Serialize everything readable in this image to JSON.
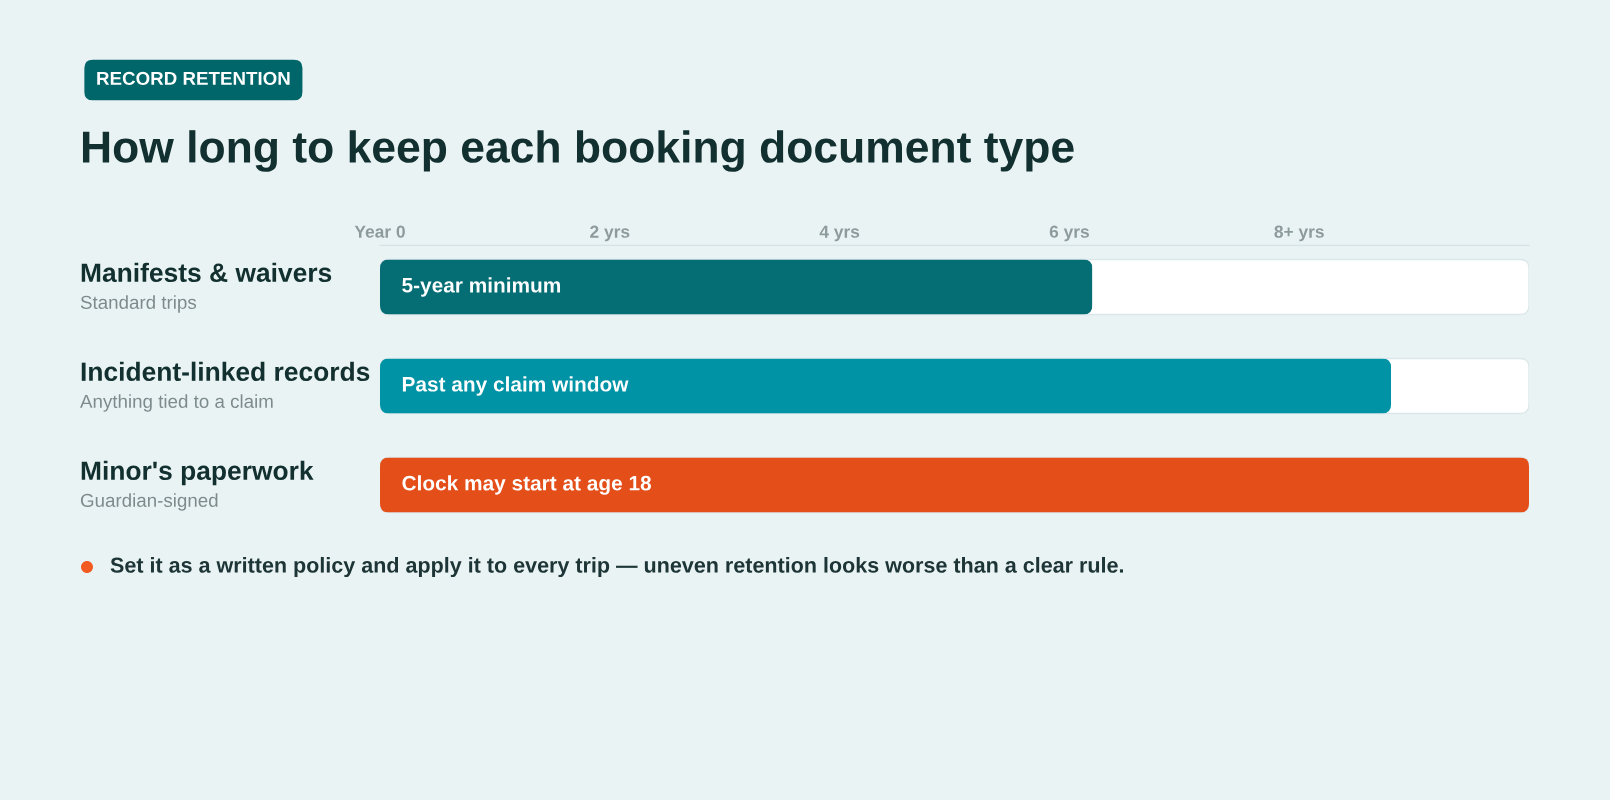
{
  "chart_data": {
    "type": "bar",
    "orientation": "horizontal",
    "subtitle": "RECORD RETENTION",
    "title": "How long to keep each booking document type",
    "categories": [
      "Manifests & waivers",
      "Incident-linked records",
      "Minor's paperwork"
    ],
    "values": [
      6.2,
      8.8,
      10
    ],
    "colors": [
      "#056e74",
      "#0093a5",
      "#e44e19"
    ],
    "xlim": [
      0,
      10
    ],
    "xticks": [
      {
        "value": 0,
        "label": "Year 0"
      },
      {
        "value": 2,
        "label": "2 yrs"
      },
      {
        "value": 4,
        "label": "4 yrs"
      },
      {
        "value": 6,
        "label": "6 yrs"
      },
      {
        "value": 8,
        "label": "8+ yrs"
      }
    ],
    "annotations": [
      "Standard trips",
      "Anything tied to a claim",
      "Guardian-signed",
      "5-year minimum",
      "Past any claim window",
      "Clock may start at age 18",
      "Set it as a written policy and apply it to every trip — uneven retention looks worse than a clear rule."
    ]
  }
}
